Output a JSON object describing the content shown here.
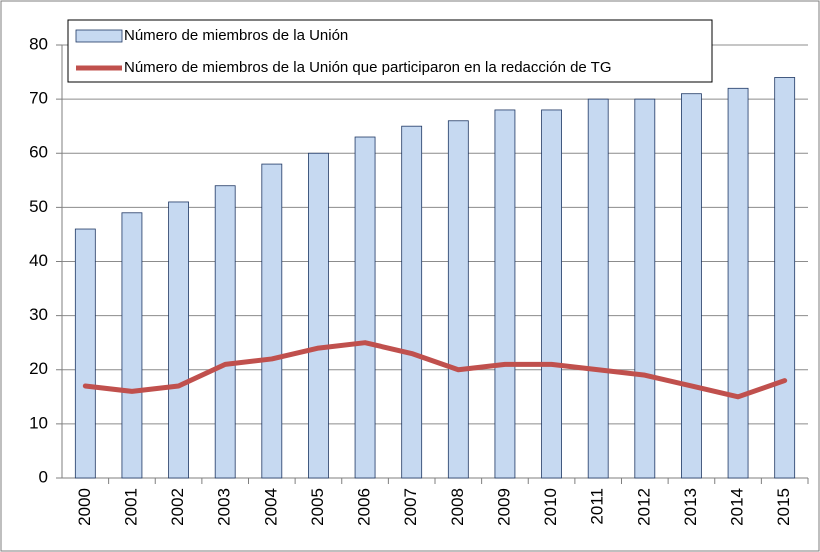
{
  "chart_data": {
    "type": "bar",
    "categories": [
      "2000",
      "2001",
      "2002",
      "2003",
      "2004",
      "2005",
      "2006",
      "2007",
      "2008",
      "2009",
      "2010",
      "2011",
      "2012",
      "2013",
      "2014",
      "2015"
    ],
    "series": [
      {
        "name": "Número de miembros de la Unión",
        "type": "bar",
        "color": "#c6d9f1",
        "values": [
          46,
          49,
          51,
          54,
          58,
          60,
          63,
          65,
          66,
          68,
          68,
          70,
          70,
          71,
          72,
          74
        ]
      },
      {
        "name": "Número de miembros de la Unión que participaron en la redacción de TG",
        "type": "line",
        "color": "#c0504d",
        "values": [
          17,
          16,
          17,
          21,
          22,
          24,
          25,
          23,
          20,
          21,
          21,
          20,
          19,
          17,
          15,
          18
        ]
      }
    ],
    "ylim": [
      0,
      80
    ],
    "yticks": [
      0,
      10,
      20,
      30,
      40,
      50,
      60,
      70,
      80
    ],
    "grid": true,
    "legend": "top-left"
  }
}
